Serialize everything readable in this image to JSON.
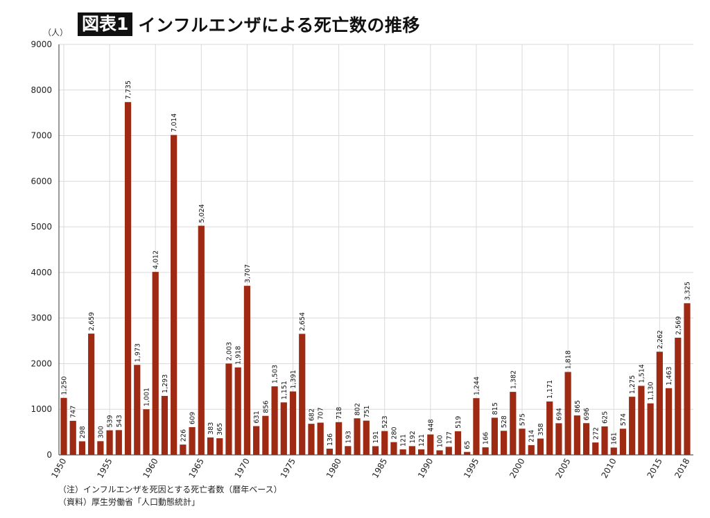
{
  "title": {
    "badge": "図表1",
    "text": "インフルエンザによる死亡数の推移"
  },
  "unit_label": "（人）",
  "notes": [
    "（注）インフルエンザを死因とする死亡者数（暦年ベース）",
    "（資料）厚生労働省「人口動態統計」"
  ],
  "colors": {
    "bar": "#9e2a14",
    "grid": "#d9d9d9",
    "axis": "#333333"
  },
  "chart_data": {
    "type": "bar",
    "title": "インフルエンザによる死亡数の推移",
    "ylabel": "（人）",
    "ylim": [
      0,
      9000
    ],
    "yticks": [
      0,
      1000,
      2000,
      3000,
      4000,
      5000,
      6000,
      7000,
      8000,
      9000
    ],
    "xtick_labels": [
      "1950",
      "1955",
      "1960",
      "1965",
      "1970",
      "1975",
      "1980",
      "1985",
      "1990",
      "1995",
      "2000",
      "2005",
      "2010",
      "2015",
      "2018"
    ],
    "grid": true,
    "categories": [
      1950,
      1951,
      1952,
      1953,
      1954,
      1955,
      1956,
      1957,
      1958,
      1959,
      1960,
      1961,
      1962,
      1963,
      1964,
      1965,
      1966,
      1967,
      1968,
      1969,
      1970,
      1971,
      1972,
      1973,
      1974,
      1975,
      1976,
      1977,
      1978,
      1979,
      1980,
      1981,
      1982,
      1983,
      1984,
      1985,
      1986,
      1987,
      1988,
      1989,
      1990,
      1991,
      1992,
      1993,
      1994,
      1995,
      1996,
      1997,
      1998,
      1999,
      2000,
      2001,
      2002,
      2003,
      2004,
      2005,
      2006,
      2007,
      2008,
      2009,
      2010,
      2011,
      2012,
      2013,
      2014,
      2015,
      2016,
      2017,
      2018
    ],
    "values": [
      1250,
      747,
      298,
      2659,
      300,
      539,
      543,
      7735,
      1973,
      1001,
      4012,
      1293,
      7014,
      226,
      609,
      5024,
      383,
      365,
      2003,
      1918,
      3707,
      631,
      856,
      1503,
      1151,
      1391,
      2654,
      682,
      707,
      136,
      718,
      193,
      802,
      751,
      191,
      523,
      280,
      121,
      192,
      121,
      448,
      100,
      177,
      519,
      65,
      1244,
      166,
      815,
      528,
      1382,
      575,
      214,
      358,
      1171,
      694,
      1818,
      865,
      696,
      272,
      625,
      161,
      574,
      1275,
      1514,
      1130,
      2262,
      1463,
      2569,
      3325
    ],
    "data_labels": [
      "1,250",
      "747",
      "298",
      "2,659",
      "300",
      "539",
      "543",
      "7,735",
      "1,973",
      "1,001",
      "4,012",
      "1,293",
      "7,014",
      "226",
      "609",
      "5,024",
      "383",
      "365",
      "2,003",
      "1,918",
      "3,707",
      "631",
      "856",
      "1,503",
      "1,151",
      "1,391",
      "2,654",
      "682",
      "707",
      "136",
      "718",
      "193",
      "802",
      "751",
      "191",
      "523",
      "280",
      "121",
      "192",
      "121",
      "448",
      "100",
      "177",
      "519",
      "65",
      "1,244",
      "166",
      "815",
      "528",
      "1,382",
      "575",
      "214",
      "358",
      "1,171",
      "694",
      "1,818",
      "865",
      "696",
      "272",
      "625",
      "161",
      "574",
      "1,275",
      "1,514",
      "1,130",
      "2,262",
      "1,463",
      "2,569",
      "3,325"
    ]
  }
}
